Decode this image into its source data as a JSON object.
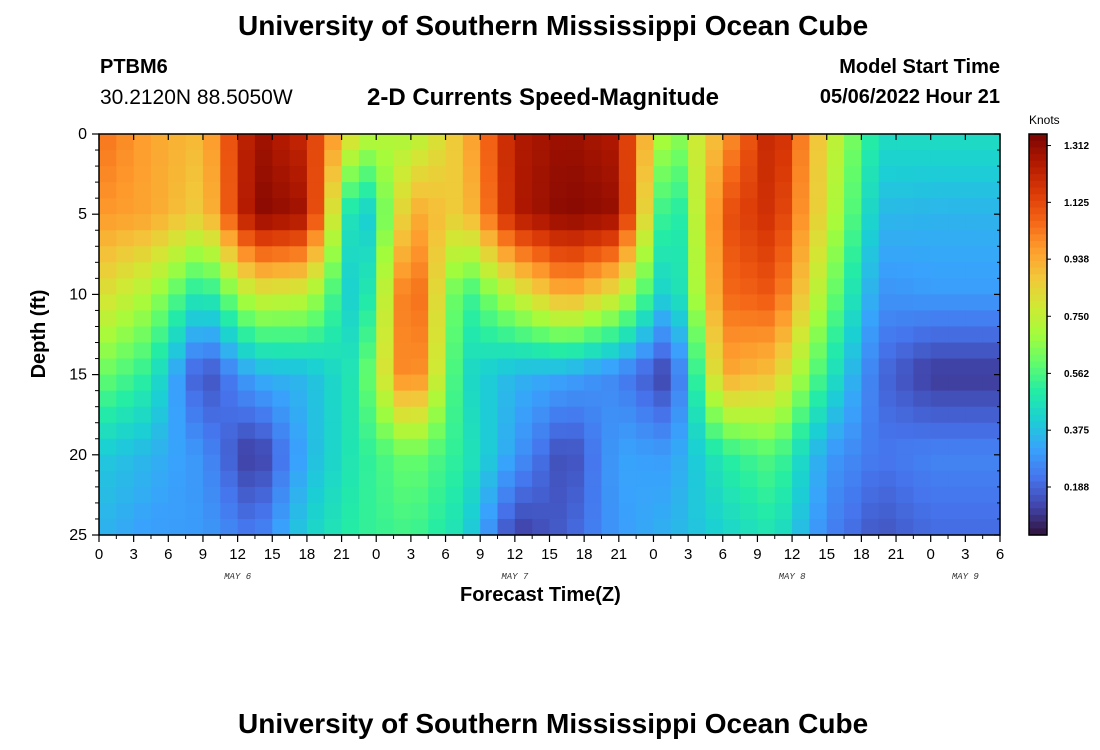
{
  "header": {
    "title": "University of Southern Mississippi Ocean Cube",
    "station": "PTBM6",
    "coords": "30.2120N  88.5050W",
    "subtitle": "2-D Currents Speed-Magnitude",
    "model_start_label": "Model Start Time",
    "model_start_value": "05/06/2022 Hour 21"
  },
  "footer_title": "University of Southern Mississippi Ocean Cube",
  "colors": {
    "colormap": [
      "#30123b",
      "#4145ab",
      "#4675ed",
      "#39a2fc",
      "#1bcfd4",
      "#24eca6",
      "#61fc6c",
      "#a4fc3b",
      "#d1e834",
      "#f3c63a",
      "#fe9b2d",
      "#f36315",
      "#d93806",
      "#b11901",
      "#7a0402"
    ]
  },
  "chart_data": {
    "type": "heatmap",
    "title": "2-D Currents Speed-Magnitude",
    "xlabel": "Forecast Time(Z)",
    "ylabel": "Depth (ft)",
    "x_ticks": [
      "0",
      "3",
      "6",
      "9",
      "12",
      "15",
      "18",
      "21",
      "0",
      "3",
      "6",
      "9",
      "12",
      "15",
      "18",
      "21",
      "0",
      "3",
      "6",
      "9",
      "12",
      "15",
      "18",
      "21",
      "0",
      "3",
      "6"
    ],
    "day_labels": [
      {
        "label": "MAY 6",
        "hour": 12
      },
      {
        "label": "MAY 7",
        "hour": 36
      },
      {
        "label": "MAY 8",
        "hour": 60
      },
      {
        "label": "MAY 9",
        "hour": 75
      }
    ],
    "xlim": [
      0,
      78
    ],
    "y_ticks": [
      0,
      5,
      10,
      15,
      20,
      25
    ],
    "ylim": [
      0,
      25
    ],
    "y_inverted": true,
    "colorbar": {
      "units": "Knots",
      "ticks": [
        "1.312",
        "1.125",
        "0.938",
        "0.750",
        "0.562",
        "0.375",
        "0.188"
      ],
      "range": [
        0.03,
        1.35
      ]
    },
    "grid_hours_step": 1.5,
    "grid_depth_step": 1,
    "hour_columns": [
      0,
      4.5,
      9,
      13.5,
      18,
      22.5,
      27,
      31.5,
      36,
      40.5,
      45,
      49.5,
      54,
      58.5,
      63,
      67.5,
      72,
      76.5,
      78
    ],
    "depth_rows": [
      0,
      5,
      10,
      15,
      20,
      25
    ],
    "values": [
      [
        1.05,
        0.95,
        0.9,
        1.3,
        1.2,
        0.75,
        0.7,
        0.9,
        1.25,
        1.3,
        1.25,
        0.6,
        0.95,
        1.25,
        0.8,
        0.45,
        0.45,
        0.45,
        0.45
      ],
      [
        0.98,
        0.95,
        0.85,
        1.33,
        1.28,
        0.3,
        0.95,
        0.85,
        1.25,
        1.33,
        1.3,
        0.38,
        1.1,
        1.2,
        0.78,
        0.36,
        0.35,
        0.35,
        0.35
      ],
      [
        0.82,
        0.7,
        0.45,
        0.78,
        0.75,
        0.35,
        1.15,
        0.5,
        0.75,
        0.95,
        0.78,
        0.35,
        1.05,
        1.1,
        0.66,
        0.28,
        0.3,
        0.3,
        0.3
      ],
      [
        0.62,
        0.5,
        0.12,
        0.34,
        0.36,
        0.5,
        1.1,
        0.45,
        0.35,
        0.32,
        0.25,
        0.1,
        0.95,
        0.88,
        0.5,
        0.2,
        0.1,
        0.1,
        0.1
      ],
      [
        0.4,
        0.35,
        0.28,
        0.08,
        0.35,
        0.5,
        0.62,
        0.5,
        0.3,
        0.12,
        0.32,
        0.3,
        0.5,
        0.58,
        0.3,
        0.22,
        0.25,
        0.25,
        0.25
      ],
      [
        0.35,
        0.3,
        0.3,
        0.22,
        0.42,
        0.52,
        0.55,
        0.45,
        0.1,
        0.18,
        0.3,
        0.35,
        0.42,
        0.48,
        0.25,
        0.15,
        0.2,
        0.2,
        0.2
      ]
    ]
  }
}
